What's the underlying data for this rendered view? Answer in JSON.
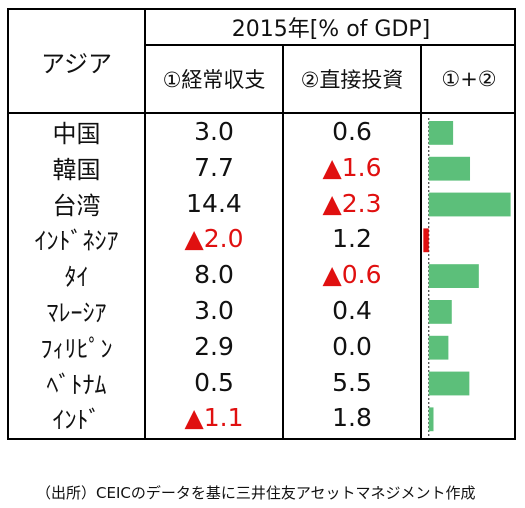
{
  "header": {
    "region": "アジア",
    "period": "2015年[% of GDP]",
    "col1": "①経常収支",
    "col2": "②直接投資",
    "col3": "①+②"
  },
  "neg_marker": "▲",
  "colors": {
    "bar_positive": "#5cbf7a",
    "bar_negative": "#e01010",
    "negative_text": "#e01010"
  },
  "rows": [
    {
      "name": "中国",
      "current_account": "3.0",
      "fdi": "0.6"
    },
    {
      "name": "韓国",
      "current_account": "7.7",
      "fdi": "▲1.6"
    },
    {
      "name": "台湾",
      "current_account": "14.4",
      "fdi": "▲2.3"
    },
    {
      "name": "ｲﾝﾄﾞﾈｼｱ",
      "current_account": "▲2.0",
      "fdi": "1.2"
    },
    {
      "name": "ﾀｲ",
      "current_account": "8.0",
      "fdi": "▲0.6"
    },
    {
      "name": "ﾏﾚｰｼｱ",
      "current_account": "3.0",
      "fdi": "0.4"
    },
    {
      "name": "ﾌｨﾘﾋﾟﾝ",
      "current_account": "2.9",
      "fdi": "0.0"
    },
    {
      "name": "ﾍﾞﾄﾅﾑ",
      "current_account": "0.5",
      "fdi": "5.5"
    },
    {
      "name": "ｲﾝﾄﾞ",
      "current_account": "▲1.1",
      "fdi": "1.8"
    }
  ],
  "chart_data": {
    "type": "bar",
    "orientation": "horizontal",
    "categories": [
      "中国",
      "韓国",
      "台湾",
      "ｲﾝﾄﾞﾈｼｱ",
      "ﾀｲ",
      "ﾏﾚｰｼｱ",
      "ﾌｨﾘﾋﾟﾝ",
      "ﾍﾞﾄﾅﾑ",
      "ｲﾝﾄﾞ"
    ],
    "series": [
      {
        "name": "①+②",
        "values": [
          3.6,
          6.1,
          12.1,
          -0.8,
          7.4,
          3.4,
          2.9,
          6.0,
          0.7
        ]
      }
    ],
    "title": "①+②",
    "xlabel": "",
    "ylabel": "",
    "xlim": [
      -1.0,
      12.6
    ]
  },
  "footer": {
    "source": "（出所）CEICのデータを基に三井住友アセットマネジメント作成"
  }
}
